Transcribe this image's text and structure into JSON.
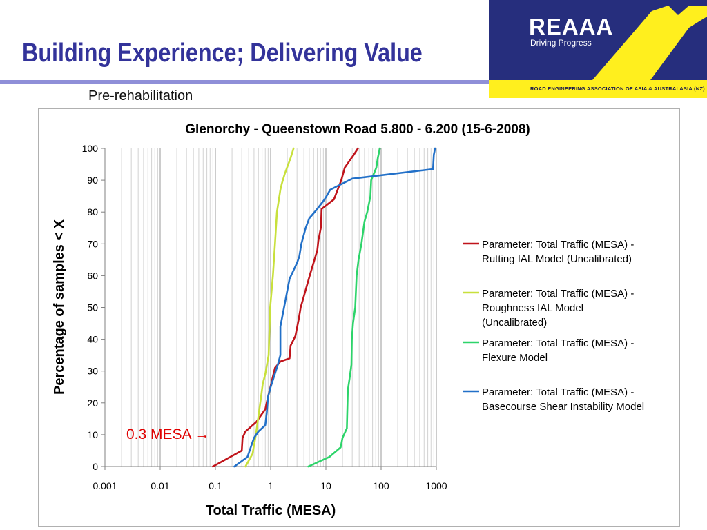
{
  "slide": {
    "title": "Building Experience; Delivering Value",
    "subtitle": "Pre-rehabilitation"
  },
  "logo": {
    "name": "REAAA",
    "registered": "®",
    "tagline": "Driving Progress",
    "org": "ROAD ENGINEERING ASSOCIATION OF ASIA & AUSTRALASIA (NZ)"
  },
  "annotation": "0.3 MESA →",
  "colors": {
    "title": "#33339a",
    "logo_panel": "#262e7d",
    "logo_accent": "#ffef1e",
    "annotation": "#e00000"
  },
  "chart_data": {
    "type": "line",
    "title": "Glenorchy - Queenstown Road 5.800 - 6.200 (15-6-2008)",
    "xlabel": "Total Traffic (MESA)",
    "ylabel": "Percentage of samples < X",
    "xscale": "log",
    "xlim": [
      0.001,
      1000
    ],
    "ylim": [
      0,
      100
    ],
    "xticks": [
      "0.001",
      "0.01",
      "0.1",
      "1",
      "10",
      "100",
      "1000"
    ],
    "yticks": [
      "0",
      "10",
      "20",
      "30",
      "40",
      "50",
      "60",
      "70",
      "80",
      "90",
      "100"
    ],
    "grid": true,
    "legend_position": "right",
    "series": [
      {
        "name": "Parameter: Total Traffic (MESA) - Rutting IAL Model (Uncalibrated)",
        "legend_lines": [
          "Parameter: Total Traffic (MESA) -",
          "Rutting IAL Model (Uncalibrated)"
        ],
        "color": "#c0141b",
        "x": [
          0.09,
          0.3,
          0.31,
          0.35,
          0.55,
          0.8,
          0.9,
          1.2,
          1.5,
          2.2,
          2.3,
          2.8,
          3.2,
          3.5,
          5.1,
          7.0,
          7.3,
          8.1,
          8.4,
          14,
          19,
          22,
          32,
          38
        ],
        "y": [
          0,
          5,
          9,
          11,
          14,
          18,
          22,
          31,
          33,
          34,
          38,
          41,
          46,
          50,
          60,
          68,
          71,
          75,
          81,
          84,
          90,
          94,
          98,
          100
        ]
      },
      {
        "name": "Parameter: Total Traffic (MESA) - Roughness IAL Model (Uncalibrated)",
        "legend_lines": [
          "Parameter: Total Traffic (MESA) -",
          "Roughness IAL Model",
          "(Uncalibrated)"
        ],
        "color": "#c8e03c",
        "x": [
          0.35,
          0.47,
          0.54,
          0.66,
          0.72,
          0.8,
          0.92,
          0.98,
          1.1,
          1.2,
          1.3,
          1.5,
          1.6,
          1.8,
          2.3,
          2.6
        ],
        "y": [
          0,
          4,
          10,
          21,
          26,
          29,
          35,
          50,
          60,
          70,
          80,
          87,
          89,
          92,
          97,
          100
        ]
      },
      {
        "name": "Parameter: Total Traffic (MESA) - Flexure Model",
        "legend_lines": [
          "Parameter: Total Traffic (MESA) -",
          "Flexure Model"
        ],
        "color": "#2dd46a",
        "x": [
          4.8,
          11.5,
          18.5,
          20,
          24,
          25,
          27,
          29,
          29.5,
          31,
          34,
          36,
          39,
          44,
          50,
          56,
          64,
          66,
          82,
          87,
          95
        ],
        "y": [
          0,
          3,
          6,
          9,
          12,
          24,
          28,
          32,
          40,
          45,
          50,
          60,
          65,
          70,
          77,
          80,
          85,
          90,
          94,
          97,
          100
        ]
      },
      {
        "name": "Parameter: Total Traffic (MESA) - Basecourse Shear Instability Model",
        "legend_lines": [
          "Parameter: Total Traffic (MESA) -",
          "Basecourse Shear Instability Model"
        ],
        "color": "#2270c8",
        "x": [
          0.22,
          0.38,
          0.5,
          0.6,
          0.8,
          0.85,
          0.9,
          1.0,
          1.35,
          1.5,
          1.5,
          2.2,
          3.0,
          3.3,
          3.6,
          4.3,
          5.0,
          7.0,
          9.5,
          12,
          30,
          870,
          900,
          950
        ],
        "y": [
          0,
          3,
          9,
          11,
          13,
          17,
          22,
          25,
          32,
          35,
          44,
          59,
          64,
          66,
          70,
          75,
          78,
          81,
          84,
          87,
          90.5,
          93.5,
          98,
          100
        ]
      }
    ]
  }
}
